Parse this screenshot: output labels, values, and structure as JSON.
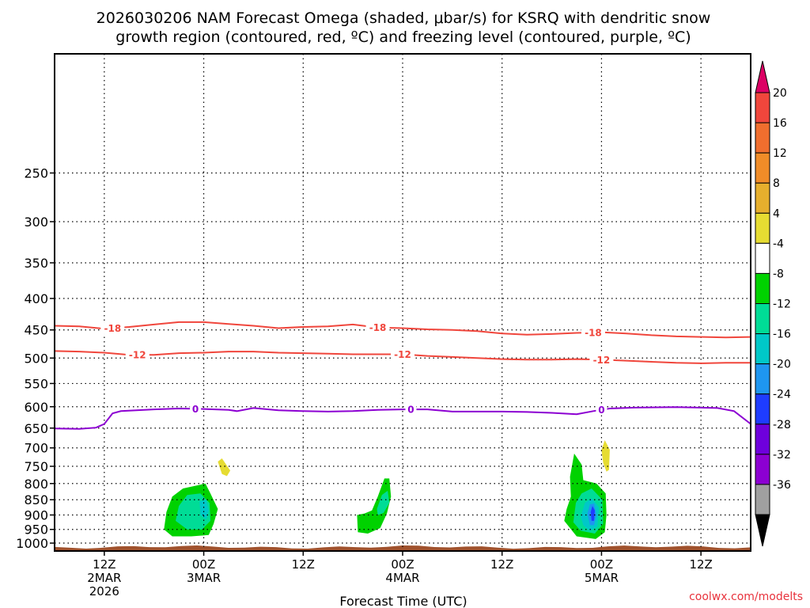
{
  "chart_data": {
    "type": "contour",
    "title_line1": "2026030206 NAM Forecast Omega (shaded, μbar/s) for KSRQ with dendritic snow",
    "title_line2": "growth region (contoured, red, ºC) and freezing level (contoured, purple, ºC)",
    "xlabel": "Forecast Time (UTC)",
    "credit": "coolwx.com/modelts",
    "x_range_hours": [
      0,
      84
    ],
    "y_range_hpa": [
      160,
      1030
    ],
    "y_ticks": [
      "250",
      "300",
      "350",
      "400",
      "450",
      "500",
      "550",
      "600",
      "650",
      "700",
      "750",
      "800",
      "850",
      "900",
      "950",
      "1000"
    ],
    "x_ticks": [
      {
        "hour": 6,
        "line1": "12Z",
        "line2": "2MAR",
        "line3": "2026"
      },
      {
        "hour": 18,
        "line1": "00Z",
        "line2": "3MAR",
        "line3": ""
      },
      {
        "hour": 30,
        "line1": "12Z",
        "line2": "",
        "line3": ""
      },
      {
        "hour": 42,
        "line1": "00Z",
        "line2": "4MAR",
        "line3": ""
      },
      {
        "hour": 54,
        "line1": "12Z",
        "line2": "",
        "line3": ""
      },
      {
        "hour": 66,
        "line1": "00Z",
        "line2": "5MAR",
        "line3": ""
      },
      {
        "hour": 78,
        "line1": "12Z",
        "line2": "",
        "line3": ""
      }
    ],
    "contours": [
      {
        "name": "dgz-minus-18",
        "color": "#f0463c",
        "label": "-18",
        "label_hours": [
          7,
          39,
          65
        ],
        "points": [
          [
            0,
            443
          ],
          [
            3,
            444
          ],
          [
            6,
            448
          ],
          [
            9,
            445
          ],
          [
            12,
            441
          ],
          [
            15,
            437
          ],
          [
            18,
            437
          ],
          [
            21,
            440
          ],
          [
            24,
            443
          ],
          [
            27,
            447
          ],
          [
            30,
            445
          ],
          [
            33,
            444
          ],
          [
            36,
            441
          ],
          [
            39,
            446
          ],
          [
            42,
            447
          ],
          [
            45,
            449
          ],
          [
            48,
            450
          ],
          [
            51,
            452
          ],
          [
            54,
            456
          ],
          [
            57,
            458
          ],
          [
            60,
            457
          ],
          [
            63,
            455
          ],
          [
            66,
            454
          ],
          [
            69,
            456
          ],
          [
            72,
            459
          ],
          [
            75,
            461
          ],
          [
            78,
            462
          ],
          [
            81,
            463
          ],
          [
            84,
            462
          ]
        ]
      },
      {
        "name": "dgz-minus-12",
        "color": "#f0463c",
        "label": "-12",
        "label_hours": [
          10,
          42,
          66
        ],
        "points": [
          [
            0,
            487
          ],
          [
            3,
            488
          ],
          [
            6,
            490
          ],
          [
            9,
            494
          ],
          [
            12,
            494
          ],
          [
            15,
            491
          ],
          [
            18,
            490
          ],
          [
            21,
            488
          ],
          [
            24,
            488
          ],
          [
            27,
            490
          ],
          [
            30,
            491
          ],
          [
            33,
            492
          ],
          [
            36,
            493
          ],
          [
            39,
            493
          ],
          [
            42,
            493
          ],
          [
            45,
            496
          ],
          [
            48,
            498
          ],
          [
            51,
            500
          ],
          [
            54,
            502
          ],
          [
            57,
            503
          ],
          [
            60,
            503
          ],
          [
            63,
            502
          ],
          [
            66,
            503
          ],
          [
            69,
            505
          ],
          [
            72,
            507
          ],
          [
            75,
            509
          ],
          [
            78,
            510
          ],
          [
            81,
            509
          ],
          [
            84,
            509
          ]
        ]
      },
      {
        "name": "freezing-level-0",
        "color": "#8c00d2",
        "label": "0",
        "label_hours": [
          17,
          43,
          66
        ],
        "points": [
          [
            0,
            651
          ],
          [
            3,
            652
          ],
          [
            5,
            649
          ],
          [
            6,
            640
          ],
          [
            7,
            615
          ],
          [
            8,
            610
          ],
          [
            12,
            606
          ],
          [
            15,
            604
          ],
          [
            18,
            605
          ],
          [
            21,
            607
          ],
          [
            22,
            610
          ],
          [
            24,
            603
          ],
          [
            27,
            608
          ],
          [
            30,
            610
          ],
          [
            33,
            611
          ],
          [
            36,
            610
          ],
          [
            39,
            607
          ],
          [
            42,
            606
          ],
          [
            45,
            606
          ],
          [
            48,
            611
          ],
          [
            51,
            611
          ],
          [
            54,
            611
          ],
          [
            57,
            612
          ],
          [
            60,
            614
          ],
          [
            63,
            617
          ],
          [
            65,
            610
          ],
          [
            67,
            604
          ],
          [
            70,
            602
          ],
          [
            75,
            601
          ],
          [
            80,
            603
          ],
          [
            82,
            610
          ],
          [
            84,
            640
          ]
        ]
      }
    ],
    "shaded_regions": [
      {
        "name": "omega-shade-green-1",
        "level": "-4 to -8",
        "color": "#00d200",
        "points": [
          [
            13.2,
            950
          ],
          [
            13.5,
            890
          ],
          [
            14.2,
            840
          ],
          [
            15.5,
            815
          ],
          [
            18.2,
            800
          ],
          [
            18.8,
            830
          ],
          [
            19.7,
            880
          ],
          [
            19.2,
            930
          ],
          [
            18.6,
            970
          ],
          [
            16.5,
            975
          ],
          [
            14.2,
            975
          ]
        ]
      },
      {
        "name": "omega-shade-green-2",
        "level": "-8 to -12",
        "color": "#00dc96",
        "points": [
          [
            14.6,
            920
          ],
          [
            15.0,
            870
          ],
          [
            16.0,
            835
          ],
          [
            17.6,
            830
          ],
          [
            18.7,
            860
          ],
          [
            18.8,
            920
          ],
          [
            17.8,
            950
          ],
          [
            16.0,
            950
          ]
        ]
      },
      {
        "name": "omega-shade-cyan-1",
        "level": "-12 to -16",
        "color": "#00c8c8",
        "points": [
          [
            17.5,
            855
          ],
          [
            18.3,
            850
          ],
          [
            18.6,
            885
          ],
          [
            18.3,
            915
          ],
          [
            17.6,
            900
          ]
        ]
      },
      {
        "name": "omega-shade-yellow-1",
        "level": "4 to 8",
        "color": "#e6dc32",
        "points": [
          [
            19.7,
            737
          ],
          [
            20.2,
            728
          ],
          [
            21.2,
            762
          ],
          [
            20.8,
            778
          ],
          [
            20.2,
            772
          ]
        ]
      },
      {
        "name": "omega-shade-green-3",
        "level": "-4 to -8",
        "color": "#00d200",
        "points": [
          [
            36.6,
            960
          ],
          [
            36.5,
            900
          ],
          [
            37.4,
            895
          ],
          [
            38.3,
            885
          ],
          [
            39.0,
            840
          ],
          [
            39.8,
            785
          ],
          [
            40.4,
            785
          ],
          [
            40.6,
            840
          ],
          [
            40.1,
            895
          ],
          [
            39.3,
            945
          ],
          [
            37.8,
            965
          ]
        ]
      },
      {
        "name": "omega-shade-green-4",
        "level": "-8 to -12",
        "color": "#00dc96",
        "points": [
          [
            38.9,
            880
          ],
          [
            39.5,
            835
          ],
          [
            40.2,
            822
          ],
          [
            40.4,
            860
          ],
          [
            39.7,
            893
          ],
          [
            39.0,
            900
          ]
        ]
      },
      {
        "name": "omega-shade-green-5",
        "level": "-4 to -8",
        "color": "#00d200",
        "points": [
          [
            61.5,
            920
          ],
          [
            61.8,
            880
          ],
          [
            62.3,
            840
          ],
          [
            62.2,
            780
          ],
          [
            62.7,
            715
          ],
          [
            63.6,
            745
          ],
          [
            63.8,
            790
          ],
          [
            65.4,
            800
          ],
          [
            66.5,
            830
          ],
          [
            66.6,
            900
          ],
          [
            66.4,
            960
          ],
          [
            65.3,
            985
          ],
          [
            63.0,
            975
          ]
        ]
      },
      {
        "name": "omega-shade-green-6",
        "level": "-8 to -12",
        "color": "#00dc96",
        "points": [
          [
            62.6,
            925
          ],
          [
            62.9,
            860
          ],
          [
            63.6,
            830
          ],
          [
            64.8,
            815
          ],
          [
            66.1,
            850
          ],
          [
            66.2,
            930
          ],
          [
            65.2,
            965
          ],
          [
            63.5,
            955
          ]
        ]
      },
      {
        "name": "omega-shade-cyan-2",
        "level": "-12 to -16",
        "color": "#00c8c8",
        "points": [
          [
            63.5,
            905
          ],
          [
            64.0,
            860
          ],
          [
            64.8,
            845
          ],
          [
            65.7,
            875
          ],
          [
            65.5,
            940
          ],
          [
            64.6,
            955
          ],
          [
            63.8,
            935
          ]
        ]
      },
      {
        "name": "omega-shade-blue-1",
        "level": "-16 to -20",
        "color": "#1e96f0",
        "points": [
          [
            64.3,
            895
          ],
          [
            64.6,
            865
          ],
          [
            65.1,
            862
          ],
          [
            65.4,
            900
          ],
          [
            65.1,
            935
          ],
          [
            64.6,
            935
          ]
        ]
      },
      {
        "name": "omega-shade-darkblue-1",
        "level": "-20 to -24",
        "color": "#1e3cff",
        "points": [
          [
            64.7,
            890
          ],
          [
            64.9,
            870
          ],
          [
            65.2,
            885
          ],
          [
            65.1,
            920
          ],
          [
            64.8,
            920
          ]
        ]
      },
      {
        "name": "omega-shade-yellow-2",
        "level": "4 to 8",
        "color": "#e6dc32",
        "points": [
          [
            66.0,
            705
          ],
          [
            66.4,
            680
          ],
          [
            67.0,
            705
          ],
          [
            66.9,
            760
          ],
          [
            66.6,
            765
          ],
          [
            66.2,
            740
          ]
        ]
      }
    ],
    "terrain": {
      "name": "ground-surface",
      "color": "#a0522d",
      "top_hpa": 1015
    },
    "colorbar": {
      "labels": [
        "20",
        "16",
        "12",
        "8",
        "4",
        "-4",
        "-8",
        "-12",
        "-16",
        "-20",
        "-24",
        "-28",
        "-32",
        "-36"
      ],
      "bands": [
        "#dc0064",
        "#f0463c",
        "#f06e2e",
        "#f08c28",
        "#e6af2d",
        "#e6dc32",
        "#ffffff",
        "#00d200",
        "#00dc96",
        "#00c8c8",
        "#1e96f0",
        "#1e3cff",
        "#6e00dc",
        "#8c00d2",
        "#a0a0a0",
        "#000000"
      ]
    }
  }
}
